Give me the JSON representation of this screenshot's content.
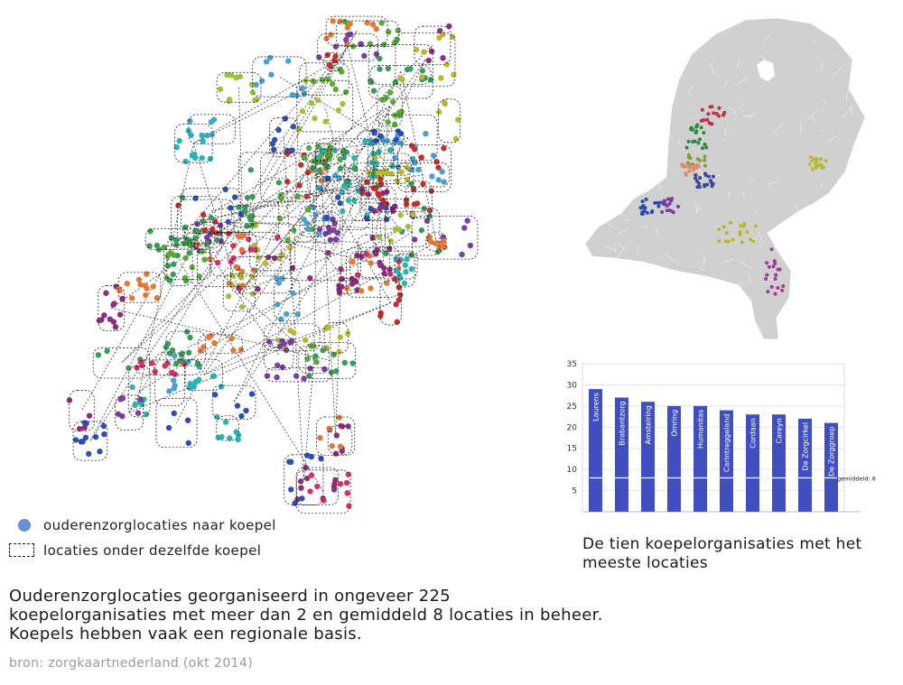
{
  "legend": {
    "locations": "ouderenzorglocaties naar koepel",
    "groups": "locaties onder dezelfde koepel"
  },
  "caption": {
    "line1": "Ouderenzorglocaties georganiseerd in ongeveer 225",
    "line2": "koepelorganisaties met meer dan 2 en gemiddeld 8 locaties in beheer.",
    "line3": "Koepels hebben vaak een regionale basis."
  },
  "source": "bron: zorgkaartnederland (okt 2014)",
  "bar_title": {
    "line1": "De tien koepelorganisaties met het",
    "line2": "meeste locaties"
  },
  "colors": {
    "bar": "#3f4fbf",
    "map_land": "#d0d0d0",
    "legend_dot": "#6a8fd6",
    "dot_palette": [
      "#7a3fa0",
      "#5aa83a",
      "#2f4fb0",
      "#2bb3b3",
      "#d4306a",
      "#3a9a5a",
      "#b8b830",
      "#e07a3a",
      "#8a2f7a",
      "#4aa0d0",
      "#a0c040",
      "#c03030"
    ]
  },
  "chart_data": {
    "type": "bar",
    "categories": [
      "Laurens",
      "Brabantzorg",
      "Amstelring",
      "Omring",
      "Humanitas",
      "Carintreggeland",
      "Cordaan",
      "Careyn",
      "De Zorgcirkel",
      "De Zorggroep"
    ],
    "values": [
      29,
      27,
      26,
      25,
      25,
      24,
      23,
      23,
      22,
      21
    ],
    "ylim": [
      0,
      35
    ],
    "yticks": [
      5,
      10,
      15,
      20,
      25,
      30,
      35
    ],
    "reference_line": {
      "value": 8,
      "label": "gemiddeld: 8"
    },
    "grid": true
  },
  "nl_map_highlights": [
    {
      "region": "noord-holland",
      "color": "#c0304a"
    },
    {
      "region": "noord-holland-zuid",
      "color": "#2a8a3a"
    },
    {
      "region": "amsterdam",
      "color": "#8a9a30"
    },
    {
      "region": "utrecht-west",
      "color": "#e08a70"
    },
    {
      "region": "utrecht",
      "color": "#3a4a9a"
    },
    {
      "region": "den-haag",
      "color": "#2a4ab0"
    },
    {
      "region": "rotterdam",
      "color": "#7a3fa0"
    },
    {
      "region": "twente",
      "color": "#b8b830"
    },
    {
      "region": "brabant",
      "color": "#b8b830"
    },
    {
      "region": "limburg",
      "color": "#a03a9a"
    }
  ]
}
